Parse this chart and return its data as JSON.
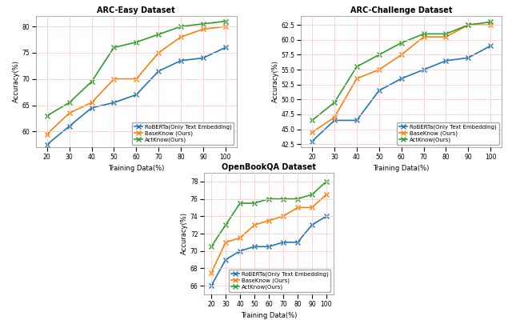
{
  "x": [
    20,
    30,
    40,
    50,
    60,
    70,
    80,
    90,
    100
  ],
  "arc_easy": {
    "title": "ARC-Easy Dataset",
    "roberta": [
      57.5,
      61.0,
      64.5,
      65.5,
      67.0,
      71.5,
      73.5,
      74.0,
      76.0
    ],
    "baseknow": [
      59.5,
      63.5,
      65.5,
      70.0,
      70.0,
      75.0,
      78.0,
      79.5,
      80.0
    ],
    "actknow": [
      63.0,
      65.5,
      69.5,
      76.0,
      77.0,
      78.5,
      80.0,
      80.5,
      81.0
    ],
    "ylabel": "Accuracy(%)",
    "xlabel": "Training Data(%)",
    "ylim": [
      57,
      82
    ]
  },
  "arc_challenge": {
    "title": "ARC-Challenge Dataset",
    "roberta": [
      43.0,
      46.5,
      46.5,
      51.5,
      53.5,
      55.0,
      56.5,
      57.0,
      59.0
    ],
    "baseknow": [
      44.5,
      47.0,
      53.5,
      55.0,
      57.5,
      60.5,
      60.5,
      62.5,
      62.5
    ],
    "actknow": [
      46.5,
      49.5,
      55.5,
      57.5,
      59.5,
      61.0,
      61.0,
      62.5,
      63.0
    ],
    "ylabel": "Accuracy(%)",
    "xlabel": "Training Data(%)",
    "ylim": [
      42,
      64
    ]
  },
  "openbookqa": {
    "title": "OpenBookQA Dataset",
    "roberta": [
      66.0,
      69.0,
      70.0,
      70.5,
      70.5,
      71.0,
      71.0,
      73.0,
      74.0
    ],
    "baseknow": [
      67.5,
      71.0,
      71.5,
      73.0,
      73.5,
      74.0,
      75.0,
      75.0,
      76.5
    ],
    "actknow": [
      70.5,
      73.0,
      75.5,
      75.5,
      76.0,
      76.0,
      76.0,
      76.5,
      78.0
    ],
    "ylabel": "Accuracy(%)",
    "xlabel": "Training Data(%)",
    "ylim": [
      65,
      79
    ]
  },
  "colors": {
    "roberta": "#1f77b4",
    "baseknow": "#ff7f0e",
    "actknow": "#2ca02c"
  },
  "legend_labels": {
    "roberta": "RoBERTa(Only Text Embedding)",
    "baseknow": "BaseKnow (Ours)",
    "actknow": "ActKnow(Ours)"
  },
  "marker": "x",
  "linewidth": 1.2,
  "markersize": 5,
  "grid_color": "#ffcccc",
  "title_fontsize": 7,
  "label_fontsize": 6,
  "tick_fontsize": 5.5,
  "legend_fontsize": 5
}
